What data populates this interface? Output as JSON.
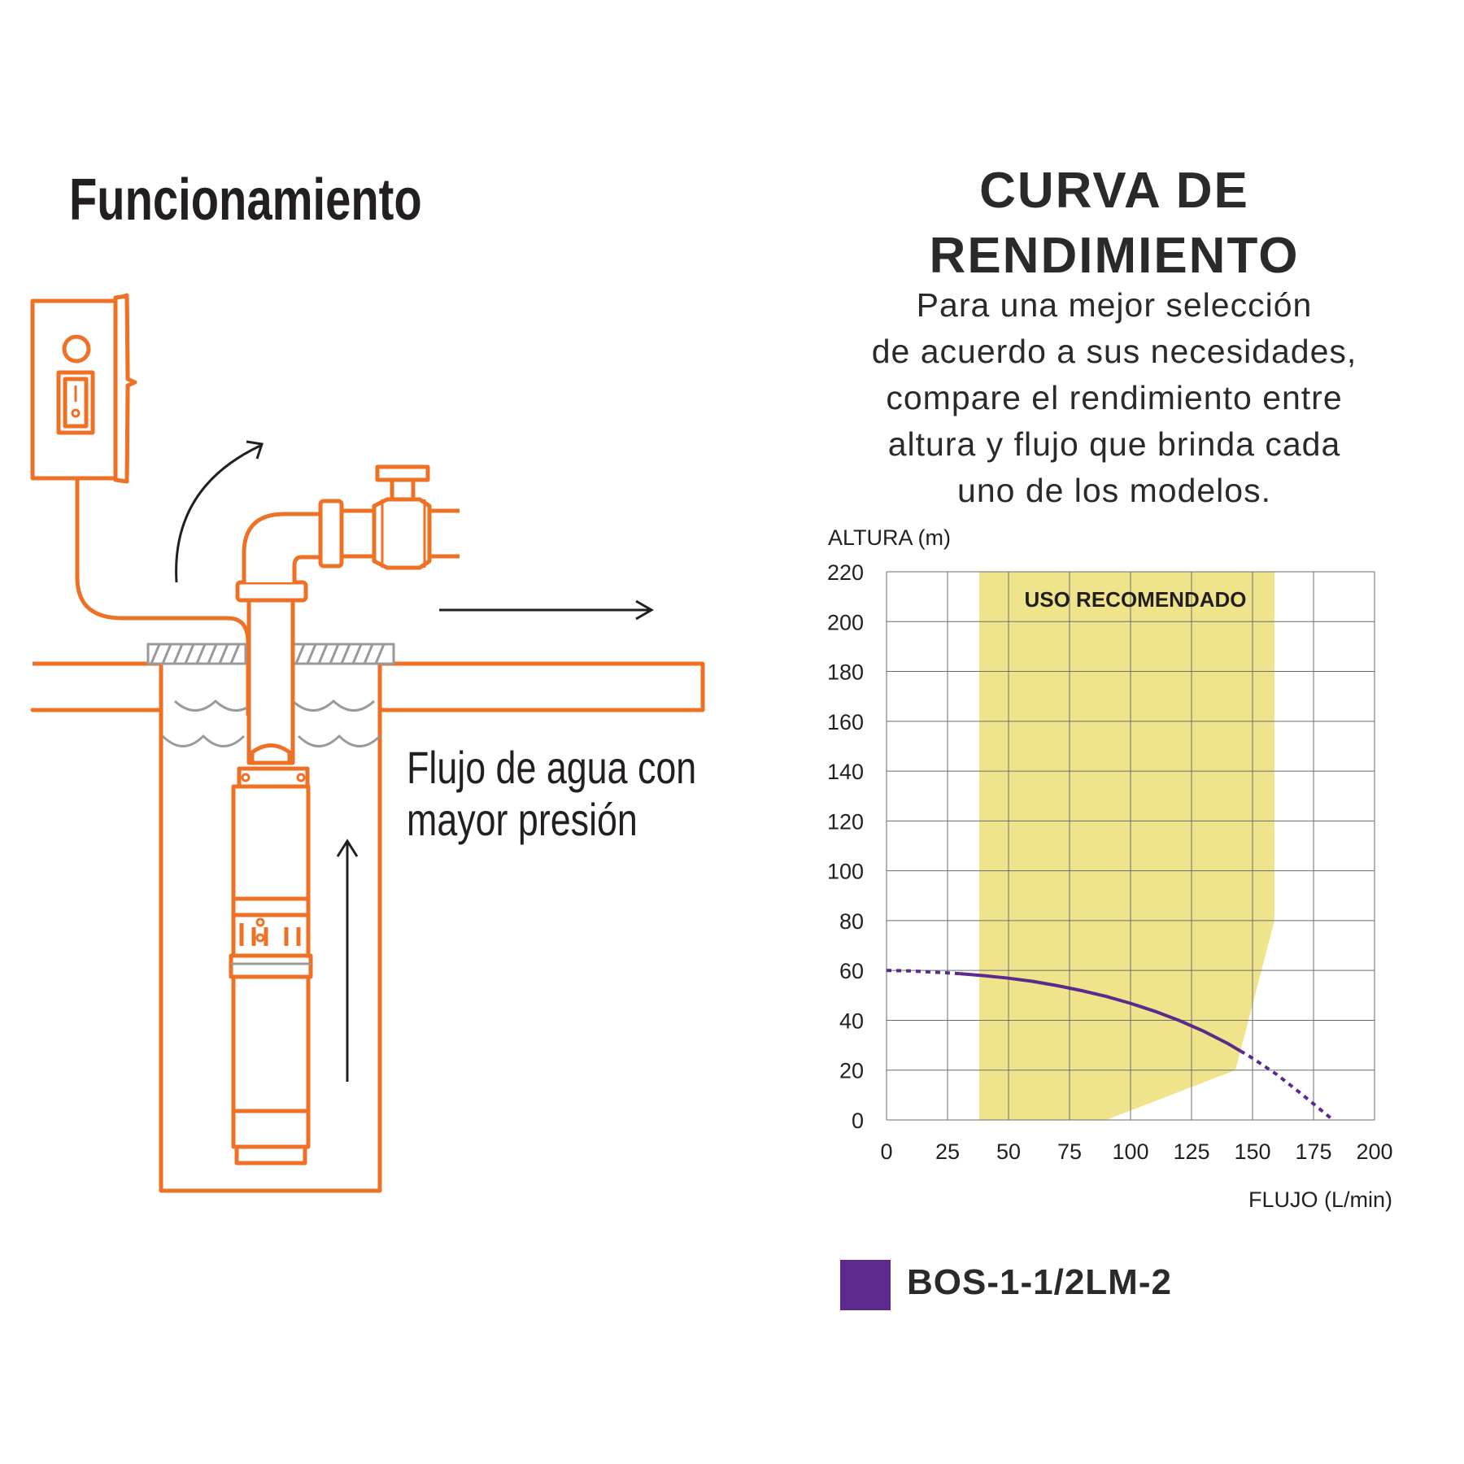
{
  "left": {
    "title": "Funcionamiento",
    "flow_text": [
      "Flujo de agua con",
      "mayor presión"
    ]
  },
  "right": {
    "title": [
      "CURVA DE",
      "RENDIMIENTO"
    ],
    "subtitle": [
      "Para una mejor selección",
      "de acuerdo a sus necesidades,",
      "compare el rendimiento entre",
      "altura y flujo que brinda cada",
      "uno de los modelos."
    ]
  },
  "colors": {
    "illustration_orange": "#ee7125",
    "zone_yellow": "#efe48c",
    "curve_purple": "#5b2a8c",
    "grid": "#6d6e71",
    "text_dark": "#231f20"
  },
  "chart_data": {
    "type": "line",
    "ylabel": "ALTURA (m)",
    "xlabel": "FLUJO (L/min)",
    "xlim": [
      0,
      200
    ],
    "ylim": [
      0,
      220
    ],
    "x_ticks": [
      0,
      25,
      50,
      75,
      100,
      125,
      150,
      175,
      200
    ],
    "y_ticks": [
      0,
      20,
      40,
      60,
      80,
      100,
      120,
      140,
      160,
      180,
      200,
      220
    ],
    "grid": true,
    "recommended_zone": {
      "label": "USO RECOMENDADO",
      "polygon": [
        [
          38,
          220
        ],
        [
          159,
          220
        ],
        [
          159,
          80
        ],
        [
          143,
          20
        ],
        [
          90,
          0
        ],
        [
          38,
          0
        ]
      ]
    },
    "series": [
      {
        "name": "BOS-1-1/2LM-2",
        "x": [
          0,
          10,
          20,
          30,
          40,
          50,
          60,
          70,
          80,
          90,
          100,
          110,
          120,
          130,
          140,
          150,
          160,
          170,
          183
        ],
        "y": [
          60,
          59.8,
          59.3,
          58.7,
          57.9,
          56.9,
          55.6,
          53.9,
          51.9,
          49.6,
          46.8,
          43.6,
          39.9,
          35.6,
          30.6,
          24.8,
          18.2,
          10.5,
          0
        ],
        "solid_range": [
          30,
          145
        ]
      }
    ],
    "legend": "bottom-left"
  }
}
